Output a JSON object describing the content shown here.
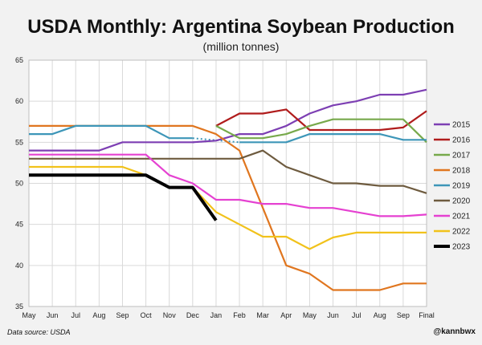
{
  "colors": {
    "background": "#f2f2f2",
    "plot_background": "#ffffff",
    "grid": "#d9d9d9"
  },
  "chart_data": {
    "type": "line",
    "title": "USDA Monthly: Argentina Soybean Production",
    "subtitle": "(million tonnes)",
    "xlabel": "",
    "ylabel": "",
    "categories": [
      "May",
      "Jun",
      "Jul",
      "Aug",
      "Sep",
      "Oct",
      "Nov",
      "Dec",
      "Jan",
      "Feb",
      "Mar",
      "Apr",
      "May",
      "Jun",
      "Jul",
      "Aug",
      "Sep",
      "Final"
    ],
    "ylim": [
      35,
      65
    ],
    "yticks": [
      35,
      40,
      45,
      50,
      55,
      60,
      65
    ],
    "grid": true,
    "legend_position": "right",
    "series": [
      {
        "name": "2015",
        "color": "#7d3fb3",
        "width": 2.2,
        "values": [
          54,
          54,
          54,
          54,
          55,
          55,
          55,
          55,
          55.2,
          56,
          56,
          57,
          58.5,
          59.5,
          60,
          60.8,
          60.8,
          61.4
        ]
      },
      {
        "name": "2016",
        "color": "#b01c1c",
        "width": 2.2,
        "values": [
          null,
          null,
          null,
          null,
          null,
          null,
          null,
          null,
          57,
          58.5,
          58.5,
          59,
          56.5,
          56.5,
          56.5,
          56.5,
          56.8,
          58.8
        ]
      },
      {
        "name": "2017",
        "color": "#77a94b",
        "width": 2.2,
        "values": [
          null,
          null,
          null,
          null,
          null,
          null,
          null,
          null,
          57,
          55.5,
          55.5,
          56,
          57,
          57.8,
          57.8,
          57.8,
          57.8,
          55
        ]
      },
      {
        "name": "2018",
        "color": "#e0761f",
        "width": 2.2,
        "values": [
          57,
          57,
          57,
          57,
          57,
          57,
          57,
          57,
          56,
          54,
          47,
          40,
          39,
          37,
          37,
          37,
          37.8,
          37.8
        ]
      },
      {
        "name": "2019",
        "color": "#3d96b8",
        "width": 2.2,
        "values": [
          56,
          56,
          57,
          57,
          57,
          57,
          55.5,
          55.5,
          null,
          55,
          55,
          55,
          56,
          56,
          56,
          56,
          55.3,
          55.3
        ]
      },
      {
        "name": "2020",
        "color": "#6e5b3f",
        "width": 2.2,
        "values": [
          53,
          53,
          53,
          53,
          53,
          53,
          53,
          53,
          53,
          53,
          54,
          52,
          51,
          50,
          50,
          49.7,
          49.7,
          48.8
        ]
      },
      {
        "name": "2021",
        "color": "#e541d1",
        "width": 2.2,
        "values": [
          53.5,
          53.5,
          53.5,
          53.5,
          53.5,
          53.5,
          51,
          50,
          48,
          48,
          47.5,
          47.5,
          47,
          47,
          46.5,
          46,
          46,
          46.2
        ]
      },
      {
        "name": "2022",
        "color": "#f1c21b",
        "width": 2.2,
        "values": [
          52,
          52,
          52,
          52,
          52,
          51,
          49.5,
          49.5,
          46.5,
          45,
          43.5,
          43.5,
          42,
          43.4,
          44,
          44,
          44,
          44
        ]
      },
      {
        "name": "2023",
        "color": "#000000",
        "width": 4,
        "values": [
          51,
          51,
          51,
          51,
          51,
          51,
          49.5,
          49.5,
          45.5,
          null,
          null,
          null,
          null,
          null,
          null,
          null,
          null,
          null
        ]
      }
    ],
    "annotations": [
      {
        "series": "2015",
        "style": "dotted",
        "from": "Dec",
        "to": "Jan"
      },
      {
        "series": "2019",
        "style": "dotted",
        "from": "Dec",
        "to": "Feb"
      }
    ]
  },
  "footer": {
    "source": "Data source: USDA",
    "handle": "@kannbwx"
  }
}
